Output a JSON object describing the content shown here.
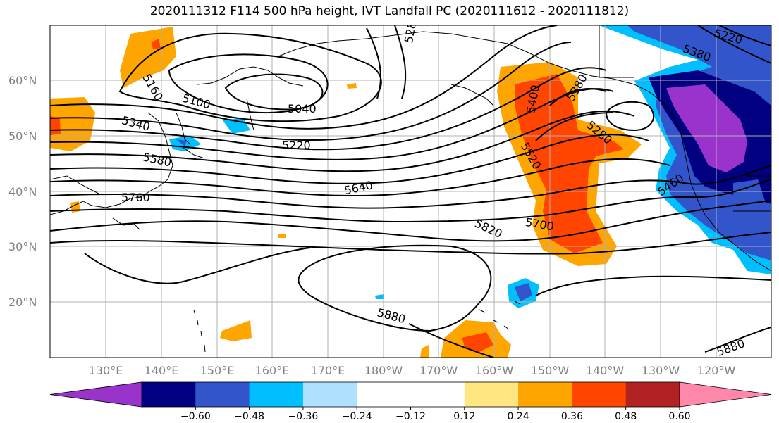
{
  "title": "2020111312 F114 500 hPa height, IVT Landfall PC (2020111612 - 2020111812)",
  "map": {
    "lat_labels": [
      "60°N",
      "50°N",
      "40°N",
      "30°N",
      "20°N"
    ],
    "lon_labels": [
      "130°E",
      "140°E",
      "150°E",
      "160°E",
      "170°E",
      "180°W",
      "170°W",
      "160°W",
      "150°W",
      "140°W",
      "130°W",
      "120°W"
    ],
    "contour_labels": [
      "5160",
      "5100",
      "5040",
      "5340",
      "5220",
      "5580",
      "5640",
      "5760",
      "5820",
      "5700",
      "5520",
      "5400",
      "5380",
      "5280",
      "5460",
      "5220",
      "5380",
      "5880",
      "5880",
      "528"
    ]
  },
  "colorbar": {
    "colors": [
      "#9933cc",
      "#000080",
      "#3355cc",
      "#00bfff",
      "#b0e0ff",
      "#ffffff",
      "#ffffff",
      "#ffe680",
      "#ffa500",
      "#ff4500",
      "#b22222",
      "#ff88aa"
    ],
    "ticks": [
      "−0.60",
      "−0.48",
      "−0.36",
      "−0.24",
      "−0.12",
      "0.12",
      "0.24",
      "0.36",
      "0.48",
      "0.60"
    ]
  }
}
